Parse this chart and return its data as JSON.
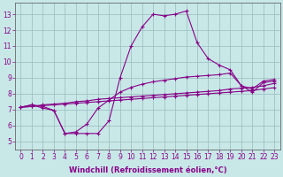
{
  "x": [
    0,
    1,
    2,
    3,
    4,
    5,
    6,
    7,
    8,
    9,
    10,
    11,
    12,
    13,
    14,
    15,
    16,
    17,
    18,
    19,
    20,
    21,
    22,
    23
  ],
  "line1": [
    7.15,
    7.3,
    7.1,
    6.95,
    5.5,
    5.5,
    5.5,
    5.5,
    6.3,
    9.0,
    11.0,
    12.2,
    13.0,
    12.9,
    13.0,
    13.2,
    11.2,
    10.2,
    9.8,
    9.5,
    8.5,
    8.1,
    8.7,
    8.8
  ],
  "line2": [
    7.15,
    7.3,
    7.2,
    6.95,
    5.5,
    5.6,
    6.1,
    7.1,
    7.6,
    8.1,
    8.4,
    8.6,
    8.75,
    8.85,
    8.95,
    9.05,
    9.1,
    9.15,
    9.2,
    9.3,
    8.5,
    8.3,
    8.8,
    8.9
  ],
  "line3": [
    7.15,
    7.2,
    7.3,
    7.35,
    7.4,
    7.5,
    7.55,
    7.65,
    7.7,
    7.75,
    7.8,
    7.85,
    7.9,
    7.95,
    8.0,
    8.05,
    8.1,
    8.15,
    8.2,
    8.3,
    8.35,
    8.4,
    8.5,
    8.65
  ],
  "line4": [
    7.15,
    7.2,
    7.25,
    7.3,
    7.35,
    7.4,
    7.45,
    7.5,
    7.55,
    7.6,
    7.65,
    7.7,
    7.75,
    7.8,
    7.85,
    7.9,
    7.95,
    8.0,
    8.05,
    8.1,
    8.15,
    8.2,
    8.3,
    8.38
  ],
  "color": "#880088",
  "bg_color": "#c8e8e8",
  "grid_color": "#99bbbb",
  "xlabel": "Windchill (Refroidissement éolien,°C)",
  "xlim": [
    -0.5,
    23.5
  ],
  "ylim": [
    4.5,
    13.7
  ],
  "yticks": [
    5,
    6,
    7,
    8,
    9,
    10,
    11,
    12,
    13
  ],
  "xticks": [
    0,
    1,
    2,
    3,
    4,
    5,
    6,
    7,
    8,
    9,
    10,
    11,
    12,
    13,
    14,
    15,
    16,
    17,
    18,
    19,
    20,
    21,
    22,
    23
  ],
  "marker": "+",
  "markersize": 3,
  "linewidth": 0.8,
  "tick_fontsize": 5.5,
  "xlabel_fontsize": 6.0
}
